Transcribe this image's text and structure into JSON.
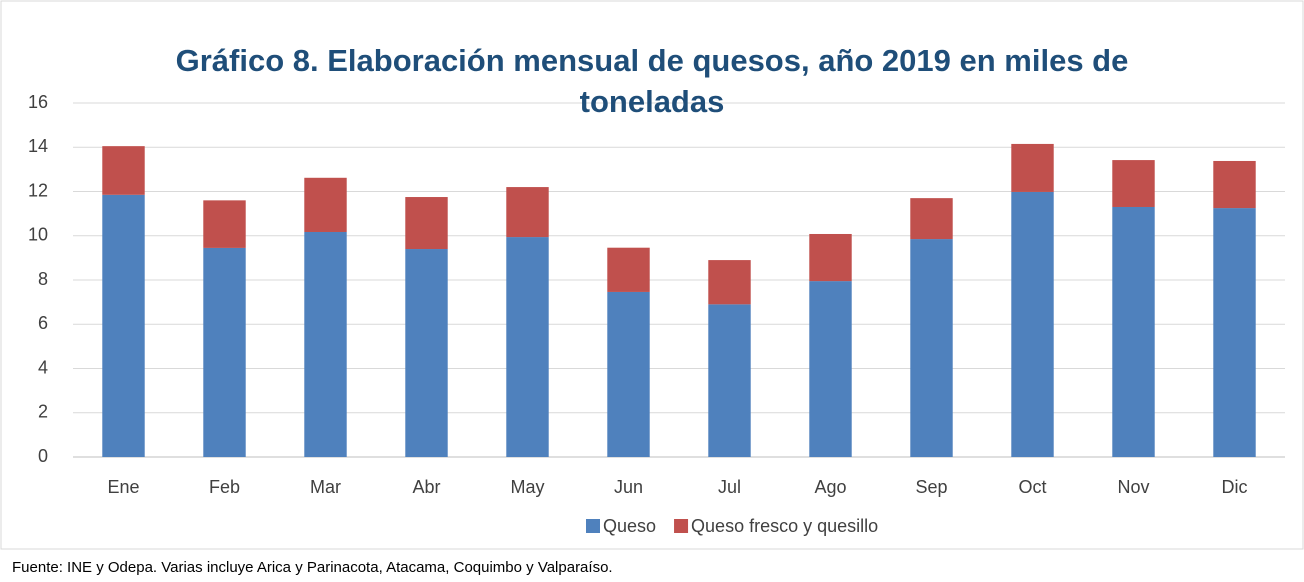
{
  "chart_data": {
    "type": "stacked_bar",
    "title": "Gráfico 8. Elaboración mensual de quesos, año 2019 en miles de toneladas",
    "categories": [
      "Ene",
      "Feb",
      "Mar",
      "Abr",
      "May",
      "Jun",
      "Jul",
      "Ago",
      "Sep",
      "Oct",
      "Nov",
      "Dic"
    ],
    "series": [
      {
        "name": "Queso",
        "color": "#4f81bd",
        "values": [
          11.85,
          9.45,
          10.17,
          9.4,
          9.94,
          7.46,
          6.9,
          7.95,
          9.85,
          11.98,
          11.3,
          11.25
        ]
      },
      {
        "name": "Queso fresco y quesillo",
        "color": "#c0504d",
        "values": [
          2.2,
          2.15,
          2.45,
          2.35,
          2.26,
          2.0,
          2.0,
          2.13,
          1.85,
          2.17,
          2.12,
          2.13
        ]
      }
    ],
    "ylim": [
      0,
      16
    ],
    "yticks": [
      0,
      2,
      4,
      6,
      8,
      10,
      12,
      14,
      16
    ],
    "grid": true,
    "legend": "bottom",
    "note": "Fuente: INE y Odepa. Varias incluye Arica y Parinacota, Atacama, Coquimbo y Valparaíso."
  }
}
